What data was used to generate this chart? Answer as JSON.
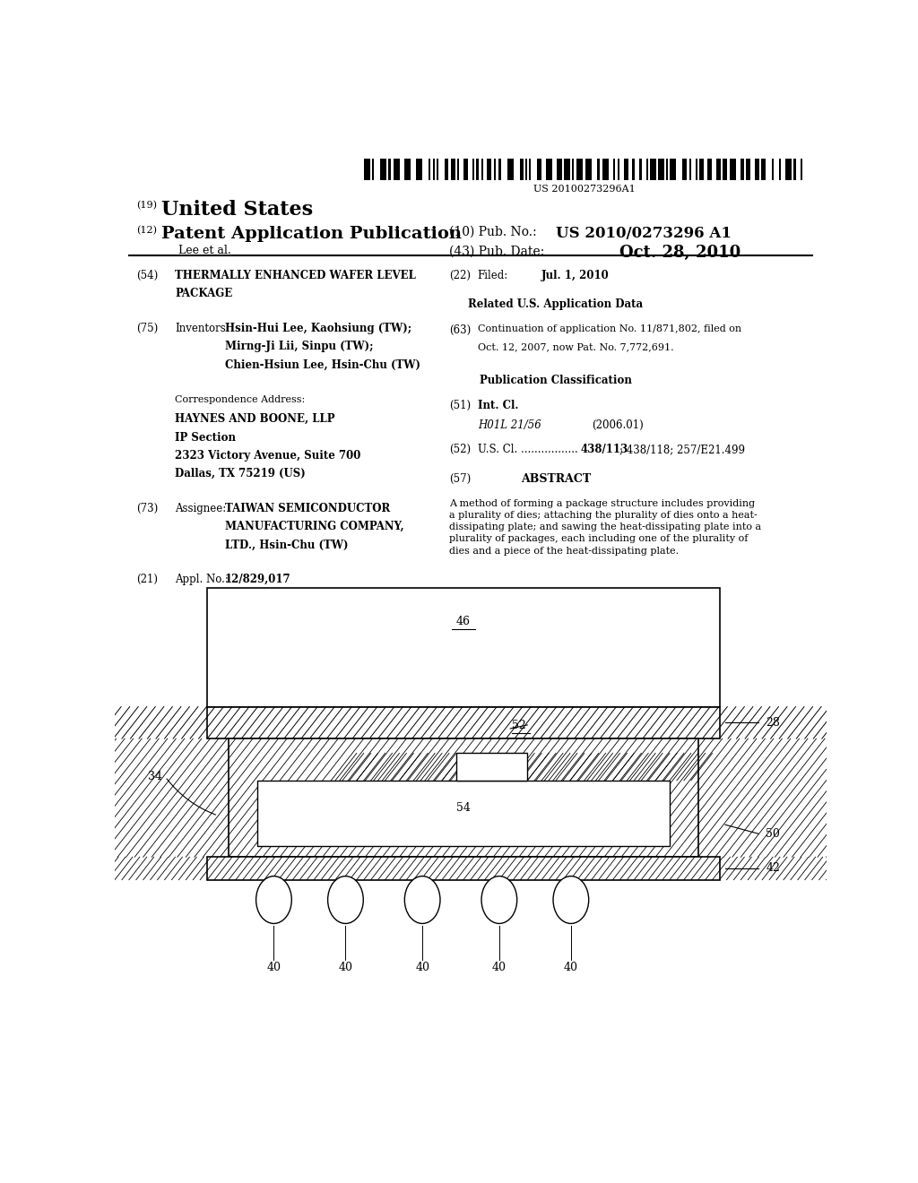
{
  "bg_color": "#ffffff",
  "barcode_text": "US 20100273296A1",
  "header_19": "(19)",
  "header_19_text": "United States",
  "header_12": "(12)",
  "header_12_text": "Patent Application Publication",
  "header_10": "(10) Pub. No.:",
  "header_10_val": "US 2010/0273296 A1",
  "header_lee": "Lee et al.",
  "header_43": "(43) Pub. Date:",
  "header_43_val": "Oct. 28, 2010"
}
